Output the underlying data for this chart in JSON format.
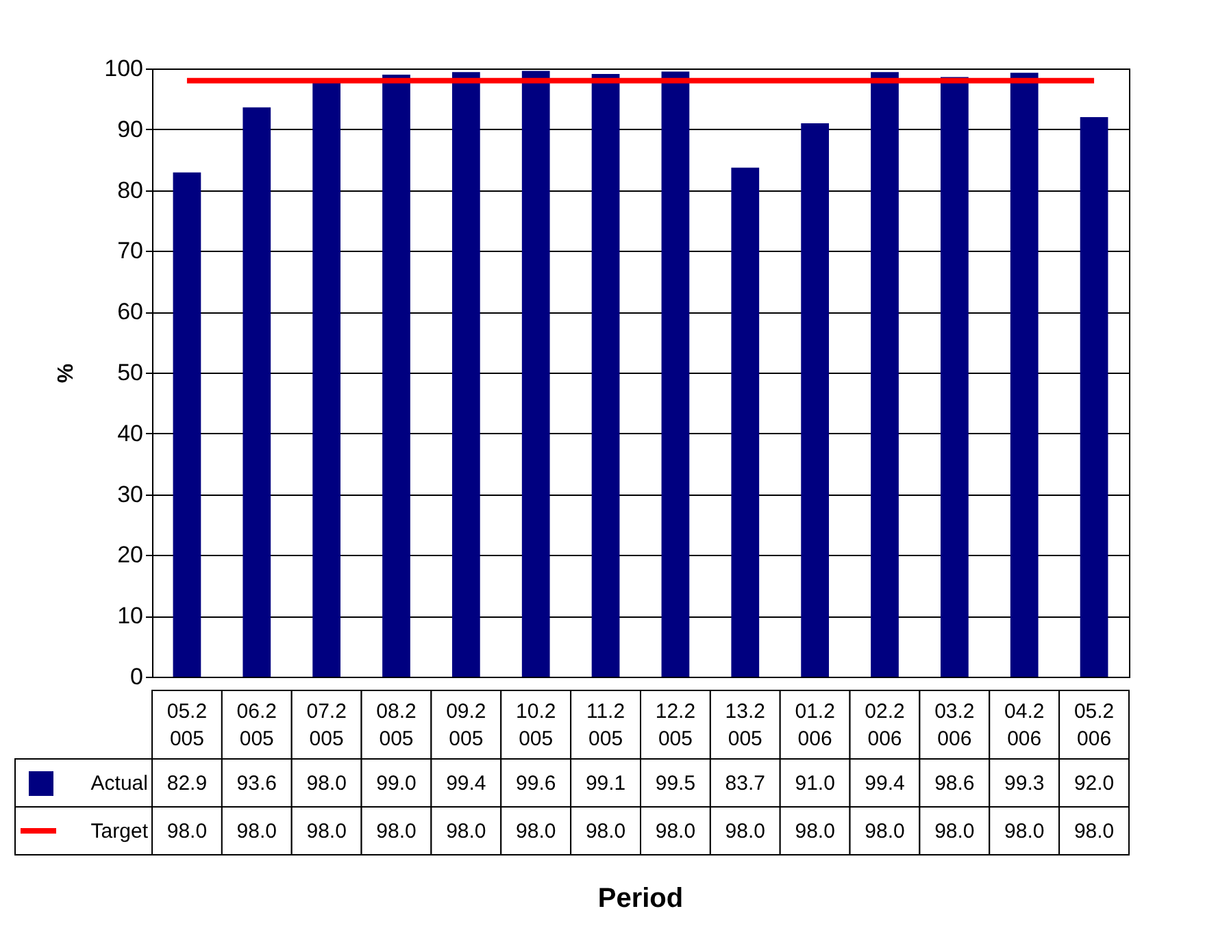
{
  "chart_data": {
    "type": "bar",
    "xlabel": "Period",
    "ylabel": "%",
    "categories": [
      "05.2005",
      "06.2005",
      "07.2005",
      "08.2005",
      "09.2005",
      "10.2005",
      "11.2005",
      "12.2005",
      "13.2005",
      "01.2006",
      "02.2006",
      "03.2006",
      "04.2006",
      "05.2006"
    ],
    "series": [
      {
        "name": "Actual",
        "color": "#000080",
        "values": [
          82.9,
          93.6,
          98.0,
          99.0,
          99.4,
          99.6,
          99.1,
          99.5,
          83.7,
          91.0,
          99.4,
          98.6,
          99.3,
          92.0
        ],
        "value_labels": [
          "82.9",
          "93.6",
          "98.0",
          "99.0",
          "99.4",
          "99.6",
          "99.1",
          "99.5",
          "83.7",
          "91.0",
          "99.4",
          "98.6",
          "99.3",
          "92.0"
        ]
      },
      {
        "name": "Target",
        "type": "line",
        "color": "#ff0000",
        "values": [
          98.0,
          98.0,
          98.0,
          98.0,
          98.0,
          98.0,
          98.0,
          98.0,
          98.0,
          98.0,
          98.0,
          98.0,
          98.0,
          98.0
        ],
        "value_labels": [
          "98.0",
          "98.0",
          "98.0",
          "98.0",
          "98.0",
          "98.0",
          "98.0",
          "98.0",
          "98.0",
          "98.0",
          "98.0",
          "98.0",
          "98.0",
          "98.0"
        ]
      }
    ],
    "ylim": [
      0,
      100
    ],
    "yticks": [
      0,
      10,
      20,
      30,
      40,
      50,
      60,
      70,
      80,
      90,
      100
    ],
    "grid": "y",
    "legend": "bottom"
  }
}
